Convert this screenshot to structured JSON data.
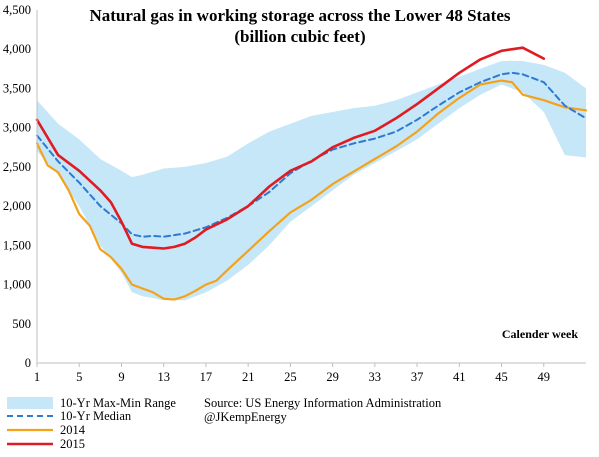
{
  "chart_data": {
    "type": "line",
    "title_line1": "Natural gas in working storage across the Lower 48 States",
    "title_line2": "(billion cubic feet)",
    "xlabel": "Calender week",
    "ylabel": "",
    "xlim": [
      1,
      53
    ],
    "ylim": [
      0,
      4500
    ],
    "x_ticks": [
      1,
      5,
      9,
      13,
      17,
      21,
      25,
      29,
      33,
      37,
      41,
      45,
      49
    ],
    "y_ticks": [
      0,
      500,
      1000,
      1500,
      2000,
      2500,
      3000,
      3500,
      4000,
      4500
    ],
    "y_tick_labels": [
      "0",
      "500",
      "1,000",
      "1,500",
      "2,000",
      "2,500",
      "3,000",
      "3,500",
      "4,000",
      "4,500"
    ],
    "grid": false,
    "legend_position": "bottom-left",
    "colors": {
      "range": "#c6e7f8",
      "median": "#2e7ad1",
      "y2014": "#f5a21b",
      "y2015": "#e01b22"
    },
    "band": {
      "name": "10-Yr Max-Min Range",
      "x": [
        1,
        3,
        5,
        7,
        9,
        10,
        11,
        13,
        15,
        17,
        19,
        21,
        23,
        25,
        27,
        29,
        31,
        33,
        35,
        37,
        39,
        41,
        43,
        45,
        47,
        49,
        51,
        53
      ],
      "upper": [
        3350,
        3050,
        2850,
        2600,
        2450,
        2370,
        2400,
        2480,
        2500,
        2550,
        2630,
        2800,
        2950,
        3050,
        3150,
        3200,
        3250,
        3280,
        3350,
        3450,
        3550,
        3650,
        3750,
        3850,
        3850,
        3800,
        3700,
        3500
      ],
      "lower": [
        2700,
        2400,
        2000,
        1500,
        1150,
        900,
        850,
        800,
        800,
        900,
        1050,
        1250,
        1500,
        1800,
        2000,
        2200,
        2400,
        2550,
        2700,
        2850,
        3050,
        3250,
        3420,
        3550,
        3450,
        3200,
        2650,
        2620
      ]
    },
    "series": [
      {
        "name": "10-Yr Median",
        "x": [
          1,
          3,
          5,
          7,
          9,
          10,
          11,
          12,
          13,
          15,
          17,
          19,
          21,
          23,
          25,
          27,
          29,
          31,
          33,
          35,
          37,
          39,
          41,
          43,
          45,
          46,
          47,
          49,
          51,
          53
        ],
        "values": [
          2900,
          2570,
          2300,
          2000,
          1780,
          1640,
          1610,
          1620,
          1610,
          1650,
          1730,
          1850,
          2000,
          2180,
          2420,
          2580,
          2720,
          2800,
          2860,
          2950,
          3100,
          3280,
          3450,
          3580,
          3680,
          3700,
          3680,
          3580,
          3280,
          3120
        ]
      },
      {
        "name": "2014",
        "x": [
          1,
          2,
          3,
          4,
          5,
          6,
          7,
          8,
          9,
          10,
          11,
          12,
          13,
          14,
          15,
          16,
          17,
          18,
          19,
          21,
          23,
          25,
          27,
          29,
          31,
          33,
          35,
          37,
          39,
          41,
          43,
          45,
          46,
          47,
          49,
          51,
          53
        ],
        "values": [
          2800,
          2520,
          2430,
          2200,
          1900,
          1750,
          1450,
          1350,
          1200,
          1000,
          950,
          900,
          820,
          810,
          850,
          920,
          1000,
          1050,
          1180,
          1430,
          1680,
          1920,
          2080,
          2280,
          2440,
          2600,
          2760,
          2950,
          3180,
          3380,
          3550,
          3600,
          3580,
          3420,
          3350,
          3260,
          3220
        ]
      },
      {
        "name": "2015",
        "x": [
          1,
          3,
          5,
          7,
          8,
          9,
          10,
          11,
          12,
          13,
          14,
          15,
          16,
          17,
          19,
          21,
          23,
          25,
          27,
          29,
          31,
          33,
          35,
          37,
          39,
          41,
          43,
          45,
          47,
          49
        ],
        "values": [
          3100,
          2650,
          2450,
          2200,
          2050,
          1800,
          1520,
          1480,
          1470,
          1460,
          1480,
          1520,
          1600,
          1700,
          1830,
          2000,
          2250,
          2450,
          2570,
          2750,
          2870,
          2960,
          3120,
          3300,
          3500,
          3700,
          3870,
          3980,
          4020,
          3880
        ]
      }
    ],
    "source_line1": "Source: US Energy Information Administration",
    "source_line2": "@JKempEnergy",
    "y_axis_color": "#bfbfbf",
    "x_axis_color": "#bfbfbf"
  }
}
